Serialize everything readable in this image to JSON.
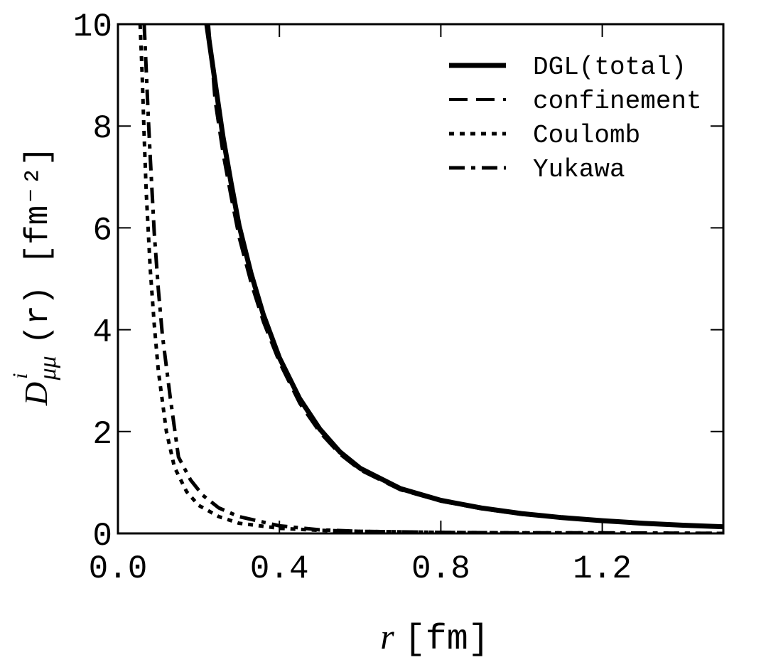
{
  "chart_data": {
    "type": "line",
    "xlabel": {
      "var": "r",
      "unit": "[fm]"
    },
    "ylabel": {
      "main": "D",
      "superscript": "i",
      "subscript": "μμ",
      "arg": "(r)",
      "unit": "[fm⁻²]"
    },
    "xlim": [
      0,
      1.5
    ],
    "ylim": [
      0,
      10
    ],
    "xticks": [
      0.0,
      0.4,
      0.8,
      1.2
    ],
    "xtick_labels": [
      "0.0",
      "0.4",
      "0.8",
      "1.2"
    ],
    "yticks": [
      0,
      2,
      4,
      6,
      8,
      10
    ],
    "ytick_labels": [
      "0",
      "2",
      "4",
      "6",
      "8",
      "10"
    ],
    "grid": false,
    "legend_position": "top-right",
    "series": [
      {
        "name": "DGL(total)",
        "style": "solid",
        "x": [
          0.22,
          0.24,
          0.26,
          0.28,
          0.3,
          0.33,
          0.36,
          0.4,
          0.45,
          0.5,
          0.55,
          0.6,
          0.7,
          0.8,
          0.9,
          1.0,
          1.1,
          1.2,
          1.3,
          1.4,
          1.5
        ],
        "y": [
          10.0,
          8.9,
          7.8,
          6.9,
          6.05,
          5.1,
          4.3,
          3.45,
          2.65,
          2.05,
          1.6,
          1.28,
          0.88,
          0.65,
          0.5,
          0.39,
          0.31,
          0.25,
          0.2,
          0.16,
          0.13
        ]
      },
      {
        "name": "confinement",
        "style": "dashed",
        "x": [
          0.225,
          0.24,
          0.26,
          0.28,
          0.3,
          0.33,
          0.36,
          0.4,
          0.45,
          0.5,
          0.55,
          0.6,
          0.7,
          0.8,
          0.9,
          1.0,
          1.1,
          1.2,
          1.3,
          1.4,
          1.5
        ],
        "y": [
          10.0,
          8.5,
          7.45,
          6.6,
          5.8,
          4.9,
          4.15,
          3.35,
          2.55,
          1.98,
          1.55,
          1.24,
          0.85,
          0.63,
          0.48,
          0.37,
          0.3,
          0.24,
          0.19,
          0.15,
          0.12
        ]
      },
      {
        "name": "Coulomb",
        "style": "dotted",
        "x": [
          0.055,
          0.06,
          0.065,
          0.07,
          0.08,
          0.09,
          0.1,
          0.12,
          0.14,
          0.17,
          0.2,
          0.25,
          0.3,
          0.4,
          0.5,
          0.6,
          0.8,
          1.0,
          1.2,
          1.5
        ],
        "y": [
          10.0,
          9.0,
          7.8,
          6.7,
          5.2,
          4.1,
          3.2,
          2.0,
          1.3,
          0.82,
          0.55,
          0.33,
          0.2,
          0.1,
          0.06,
          0.04,
          0.02,
          0.01,
          0.01,
          0.0
        ]
      },
      {
        "name": "Yukawa",
        "style": "dashdot",
        "x": [
          0.065,
          0.07,
          0.075,
          0.08,
          0.09,
          0.1,
          0.11,
          0.13,
          0.15,
          0.18,
          0.21,
          0.25,
          0.3,
          0.4,
          0.5,
          0.6,
          0.8,
          1.0,
          1.2,
          1.5
        ],
        "y": [
          10.0,
          9.1,
          8.2,
          7.4,
          5.9,
          4.8,
          3.9,
          2.65,
          1.5,
          1.05,
          0.75,
          0.5,
          0.33,
          0.15,
          0.07,
          0.04,
          0.02,
          0.01,
          0.01,
          0.0
        ]
      }
    ]
  }
}
